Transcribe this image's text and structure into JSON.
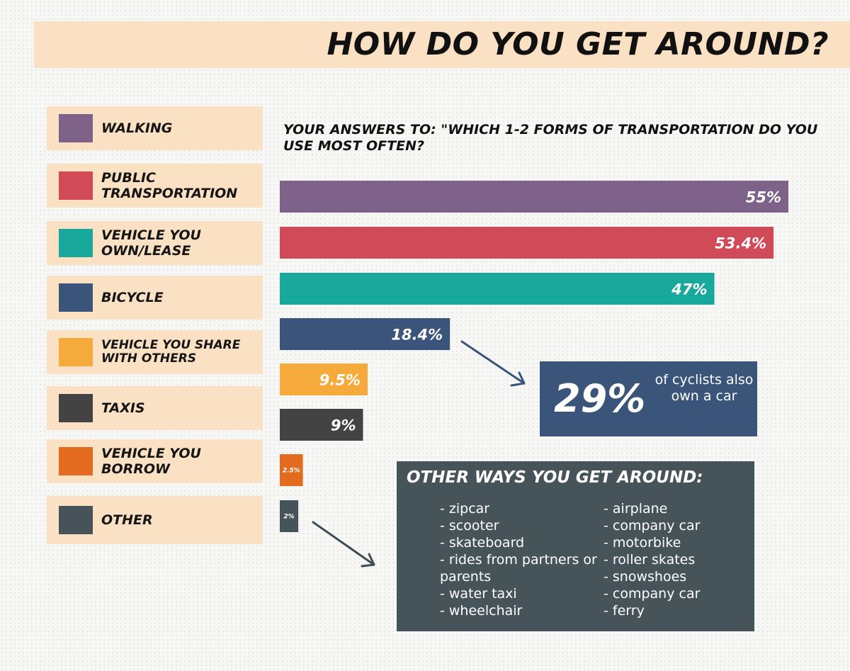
{
  "title": "HOW DO YOU GET AROUND?",
  "subtitle": "YOUR ANSWERS TO: \"WHICH 1-2 FORMS OF TRANSPORTATION DO YOU USE MOST OFTEN?",
  "chart_data": {
    "type": "bar",
    "orientation": "horizontal",
    "categories": [
      "WALKING",
      "PUBLIC TRANSPORTATION",
      "VEHICLE YOU OWN/LEASE",
      "BICYCLE",
      "VEHICLE YOU SHARE WITH OTHERS",
      "TAXIS",
      "VEHICLE YOU BORROW",
      "OTHER"
    ],
    "values": [
      55,
      53.4,
      47,
      18.4,
      9.5,
      9,
      2.5,
      2
    ],
    "value_labels": [
      "55%",
      "53.4%",
      "47%",
      "18.4%",
      "9.5%",
      "9%",
      "2.5%",
      "2%"
    ],
    "colors": [
      "#7f6289",
      "#d04a58",
      "#18a99c",
      "#3a5579",
      "#f5aa3b",
      "#434343",
      "#e26b1f",
      "#46545a"
    ],
    "xlim": [
      0,
      55
    ],
    "unit": "%",
    "grid": false
  },
  "callout": {
    "value": "29%",
    "text": "of cyclists also own a car"
  },
  "other_ways": {
    "title": "OTHER WAYS YOU GET AROUND:",
    "column_1": [
      "- zipcar",
      "- scooter",
      "- skateboard",
      "- rides from partners or parents",
      "- water taxi",
      "- wheelchair"
    ],
    "column_2": [
      "- airplane",
      "- company car",
      "- motorbike",
      "- roller skates",
      "- snowshoes",
      "- company car",
      "- ferry"
    ]
  }
}
